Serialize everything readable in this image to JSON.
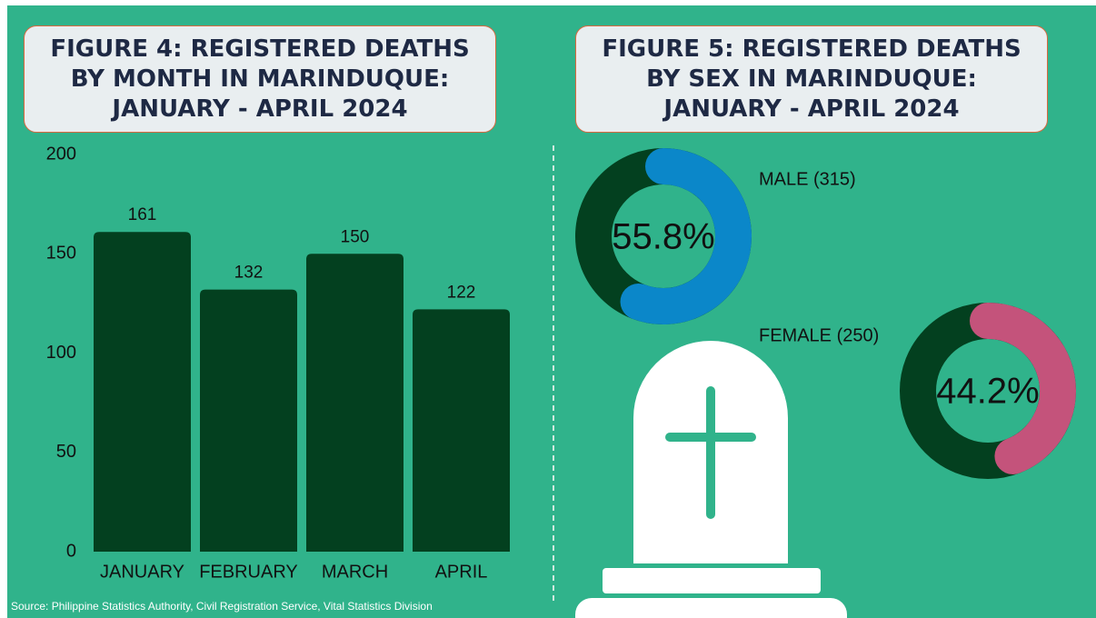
{
  "chart_data": [
    {
      "type": "bar",
      "title": "FIGURE 4: REGISTERED DEATHS BY MONTH IN MARINDUQUE: JANUARY - APRIL 2024",
      "categories": [
        "JANUARY",
        "FEBRUARY",
        "MARCH",
        "APRIL"
      ],
      "values": [
        161,
        132,
        150,
        122
      ],
      "color": "#03401f",
      "ylim": [
        0,
        200
      ],
      "yticks": [
        0,
        50,
        100,
        150,
        200
      ],
      "grid": false
    },
    {
      "type": "donut",
      "title": "FIGURE 5: REGISTERED DEATHS BY SEX IN MARINDUQUE: JANUARY - APRIL 2024",
      "categories": [
        "MALE  (315)",
        "FEMALE (250)"
      ],
      "values": [
        55.8,
        44.2
      ],
      "value_labels": [
        "55.8%",
        "44.2%"
      ],
      "colors": [
        "#0b87c9",
        "#c4537b"
      ],
      "track_color": "#03401f"
    }
  ],
  "source": "Source: Philippine Statistics Authority, Civil Registration Service, Vital Statistics Division"
}
